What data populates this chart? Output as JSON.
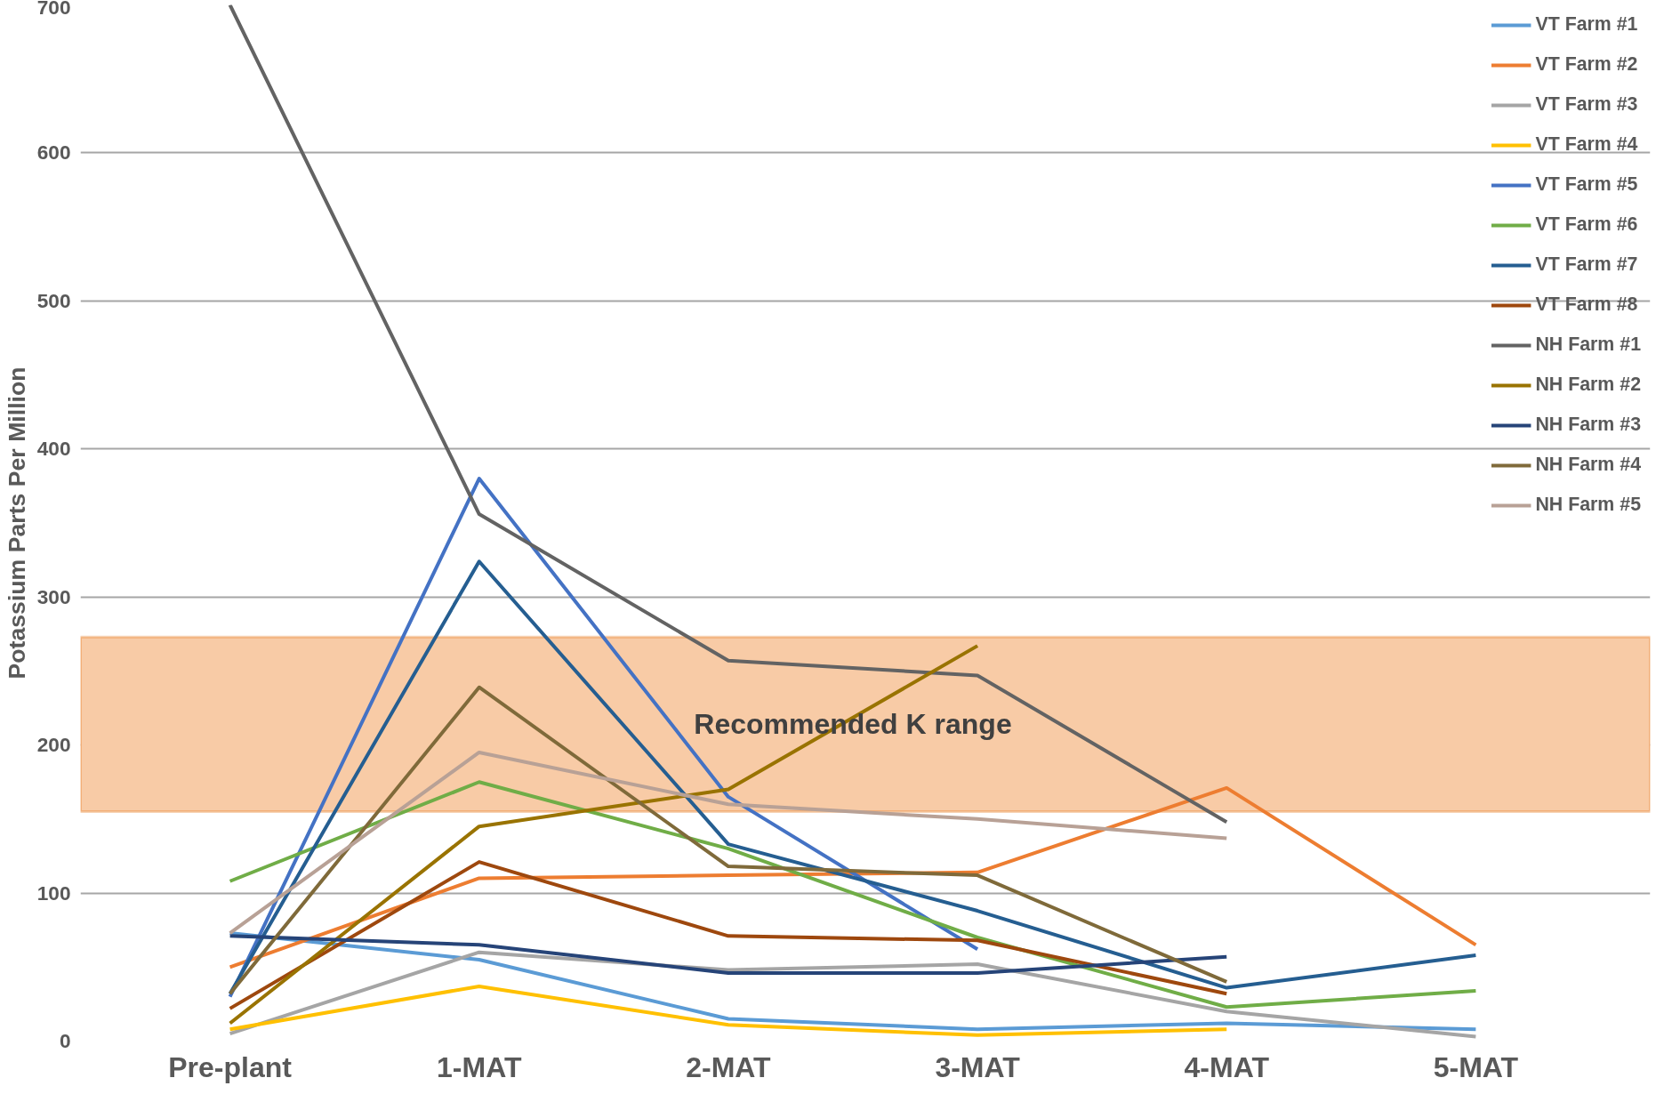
{
  "chart_data": {
    "type": "line",
    "ylabel": "Potassium Parts Per Million",
    "categories": [
      "Pre-plant",
      "1-MAT",
      "2-MAT",
      "3-MAT",
      "4-MAT",
      "5-MAT"
    ],
    "ylim": [
      0,
      700
    ],
    "yticks": [
      0,
      100,
      200,
      300,
      400,
      500,
      600,
      700
    ],
    "grid": "y",
    "legend": "top right",
    "bands": [
      {
        "axis": "y",
        "from": 155,
        "to": 273,
        "label": "Recommended K range",
        "color": "#f8cba6"
      }
    ],
    "series": [
      {
        "name": "VT Farm #1",
        "color": "#5b9bd5",
        "values": [
          73,
          55,
          15,
          8,
          12,
          8
        ]
      },
      {
        "name": "VT Farm #2",
        "color": "#ed7d31",
        "values": [
          50,
          110,
          112,
          114,
          171,
          65
        ]
      },
      {
        "name": "VT Farm #3",
        "color": "#a5a5a5",
        "values": [
          5,
          60,
          48,
          52,
          20,
          3
        ]
      },
      {
        "name": "VT Farm #4",
        "color": "#ffc000",
        "values": [
          8,
          37,
          11,
          4,
          8,
          null
        ]
      },
      {
        "name": "VT Farm #5",
        "color": "#4472c4",
        "values": [
          30,
          380,
          165,
          62,
          null,
          null
        ]
      },
      {
        "name": "VT Farm #6",
        "color": "#70ad47",
        "values": [
          108,
          175,
          130,
          70,
          23,
          34
        ]
      },
      {
        "name": "VT Farm #7",
        "color": "#255e91",
        "values": [
          32,
          324,
          133,
          88,
          36,
          58
        ]
      },
      {
        "name": "VT Farm #8",
        "color": "#9e480e",
        "values": [
          22,
          121,
          71,
          68,
          32,
          null
        ]
      },
      {
        "name": "NH Farm #1",
        "color": "#636363",
        "values": [
          700,
          356,
          257,
          247,
          148,
          null
        ]
      },
      {
        "name": "NH Farm #2",
        "color": "#997300",
        "values": [
          12,
          145,
          170,
          267,
          null,
          null
        ]
      },
      {
        "name": "NH Farm #3",
        "color": "#264478",
        "values": [
          71,
          65,
          46,
          46,
          57,
          null
        ]
      },
      {
        "name": "NH Farm #4",
        "color": "#7f6a3a",
        "values": [
          32,
          239,
          118,
          112,
          40,
          null
        ]
      },
      {
        "name": "NH Farm #5",
        "color": "#b8a196",
        "values": [
          73,
          195,
          160,
          150,
          137,
          null
        ]
      }
    ]
  }
}
